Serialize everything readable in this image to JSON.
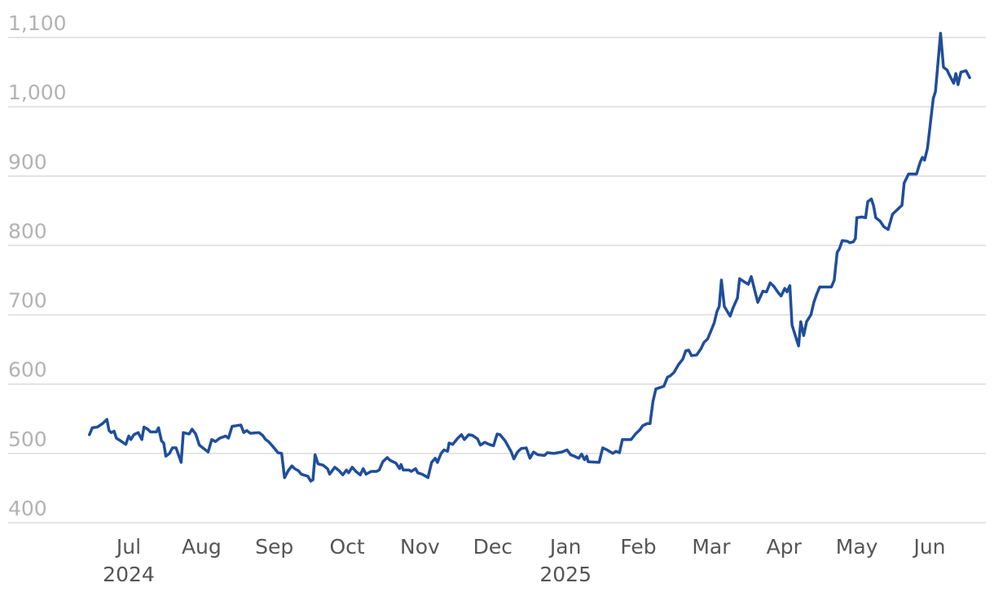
{
  "chart_data": {
    "type": "line",
    "color": "#1f4e9b",
    "grid": true,
    "ylim": [
      400,
      1100
    ],
    "yticks": [
      400,
      500,
      600,
      700,
      800,
      900,
      {
        "value": 1000,
        "label": "1,000"
      },
      {
        "value": 1100,
        "label": "1,100"
      }
    ],
    "xlim": [
      -1.656,
      11.772
    ],
    "xticks": [
      {
        "value": 0,
        "label": "Jul"
      },
      {
        "value": 1,
        "label": "Aug"
      },
      {
        "value": 2,
        "label": "Sep"
      },
      {
        "value": 3,
        "label": "Oct"
      },
      {
        "value": 4,
        "label": "Nov"
      },
      {
        "value": 5,
        "label": "Dec"
      },
      {
        "value": 6,
        "label": "Jan"
      },
      {
        "value": 7,
        "label": "Feb"
      },
      {
        "value": 8,
        "label": "Mar"
      },
      {
        "value": 9,
        "label": "Apr"
      },
      {
        "value": 10,
        "label": "May"
      },
      {
        "value": 11,
        "label": "Jun"
      }
    ],
    "xtick_years": [
      {
        "value": 0,
        "label": "2024"
      },
      {
        "value": 6,
        "label": "2025"
      }
    ],
    "x": [
      -0.54,
      -0.5,
      -0.43,
      -0.36,
      -0.3,
      -0.27,
      -0.24,
      -0.2,
      -0.17,
      -0.11,
      -0.04,
      0,
      0.03,
      0.07,
      0.13,
      0.18,
      0.21,
      0.26,
      0.3,
      0.38,
      0.41,
      0.45,
      0.48,
      0.51,
      0.56,
      0.6,
      0.65,
      0.72,
      0.75,
      0.83,
      0.87,
      0.92,
      0.97,
      1.03,
      1.09,
      1.14,
      1.19,
      1.25,
      1.33,
      1.37,
      1.42,
      1.48,
      1.54,
      1.58,
      1.62,
      1.67,
      1.79,
      1.84,
      1.88,
      1.92,
      1.98,
      2.05,
      2.1,
      2.14,
      2.19,
      2.24,
      2.28,
      2.33,
      2.37,
      2.46,
      2.5,
      2.53,
      2.56,
      2.6,
      2.67,
      2.73,
      2.76,
      2.83,
      2.89,
      2.94,
      2.99,
      3.02,
      3.07,
      3.12,
      3.18,
      3.22,
      3.26,
      3.33,
      3.4,
      3.44,
      3.49,
      3.55,
      3.59,
      3.67,
      3.72,
      3.74,
      3.77,
      3.85,
      3.88,
      3.94,
      3.97,
      4.03,
      4.11,
      4.16,
      4.21,
      4.24,
      4.29,
      4.33,
      4.38,
      4.4,
      4.45,
      4.52,
      4.57,
      4.61,
      4.67,
      4.72,
      4.79,
      4.83,
      4.89,
      4.95,
      5.01,
      5.06,
      5.1,
      5.17,
      5.25,
      5.29,
      5.34,
      5.39,
      5.46,
      5.51,
      5.56,
      5.62,
      5.71,
      5.75,
      5.84,
      5.95,
      6.02,
      6.07,
      6.12,
      6.18,
      6.22,
      6.26,
      6.29,
      6.31,
      6.46,
      6.51,
      6.57,
      6.65,
      6.69,
      6.74,
      6.78,
      6.85,
      6.9,
      6.96,
      7.02,
      7.06,
      7.12,
      7.16,
      7.2,
      7.24,
      7.3,
      7.35,
      7.4,
      7.44,
      7.49,
      7.55,
      7.61,
      7.65,
      7.69,
      7.73,
      7.8,
      7.86,
      7.9,
      7.95,
      7.99,
      8.04,
      8.08,
      8.11,
      8.14,
      8.18,
      8.26,
      8.3,
      8.36,
      8.39,
      8.46,
      8.51,
      8.55,
      8.61,
      8.64,
      8.71,
      8.76,
      8.81,
      8.86,
      8.92,
      8.96,
      9.01,
      9.04,
      9.08,
      9.11,
      9.14,
      9.2,
      9.23,
      9.27,
      9.31,
      9.37,
      9.41,
      9.45,
      9.49,
      9.65,
      9.69,
      9.73,
      9.76,
      9.8,
      9.87,
      9.9,
      9.95,
      9.98,
      10.0,
      10.07,
      10.12,
      10.15,
      10.2,
      10.23,
      10.26,
      10.32,
      10.37,
      10.43,
      10.49,
      10.56,
      10.62,
      10.65,
      10.71,
      10.77,
      10.82,
      10.87,
      10.9,
      10.93,
      10.97,
      11.05,
      11.08,
      11.15,
      11.19,
      11.24,
      11.27,
      11.33,
      11.36,
      11.39,
      11.43,
      11.5,
      11.55
    ],
    "values": [
      527,
      537,
      538,
      543,
      549,
      533,
      530,
      532,
      522,
      518,
      513,
      525,
      520,
      527,
      530,
      520,
      538,
      535,
      531,
      531,
      537,
      518,
      515,
      496,
      500,
      508,
      508,
      487,
      530,
      528,
      535,
      528,
      512,
      507,
      502,
      520,
      517,
      522,
      525,
      522,
      539,
      540,
      541,
      530,
      533,
      529,
      530,
      526,
      520,
      517,
      510,
      501,
      500,
      465,
      475,
      482,
      478,
      475,
      470,
      467,
      460,
      462,
      498,
      485,
      483,
      478,
      470,
      480,
      475,
      469,
      476,
      472,
      480,
      474,
      469,
      478,
      470,
      474,
      474,
      476,
      488,
      494,
      490,
      486,
      478,
      484,
      476,
      476,
      474,
      478,
      472,
      470,
      465,
      487,
      493,
      487,
      500,
      505,
      503,
      515,
      513,
      522,
      527,
      520,
      527,
      526,
      521,
      512,
      516,
      513,
      511,
      528,
      527,
      518,
      503,
      492,
      502,
      507,
      508,
      493,
      502,
      498,
      497,
      501,
      500,
      502,
      505,
      498,
      496,
      493,
      499,
      491,
      496,
      488,
      487,
      508,
      505,
      500,
      503,
      501,
      520,
      520,
      520,
      528,
      534,
      540,
      543,
      543,
      575,
      593,
      595,
      597,
      610,
      612,
      617,
      628,
      636,
      648,
      649,
      641,
      642,
      651,
      660,
      665,
      675,
      688,
      705,
      712,
      750,
      712,
      698,
      710,
      724,
      752,
      747,
      744,
      755,
      730,
      718,
      734,
      733,
      746,
      741,
      732,
      727,
      738,
      733,
      742,
      685,
      675,
      655,
      690,
      670,
      690,
      700,
      718,
      730,
      740,
      740,
      750,
      790,
      795,
      807,
      806,
      804,
      805,
      810,
      840,
      841,
      840,
      863,
      867,
      857,
      840,
      835,
      827,
      823,
      845,
      852,
      858,
      890,
      903,
      903,
      903,
      920,
      927,
      923,
      940,
      1012,
      1022,
      1106,
      1057,
      1053,
      1046,
      1034,
      1048,
      1032,
      1050,
      1052,
      1042
    ]
  }
}
